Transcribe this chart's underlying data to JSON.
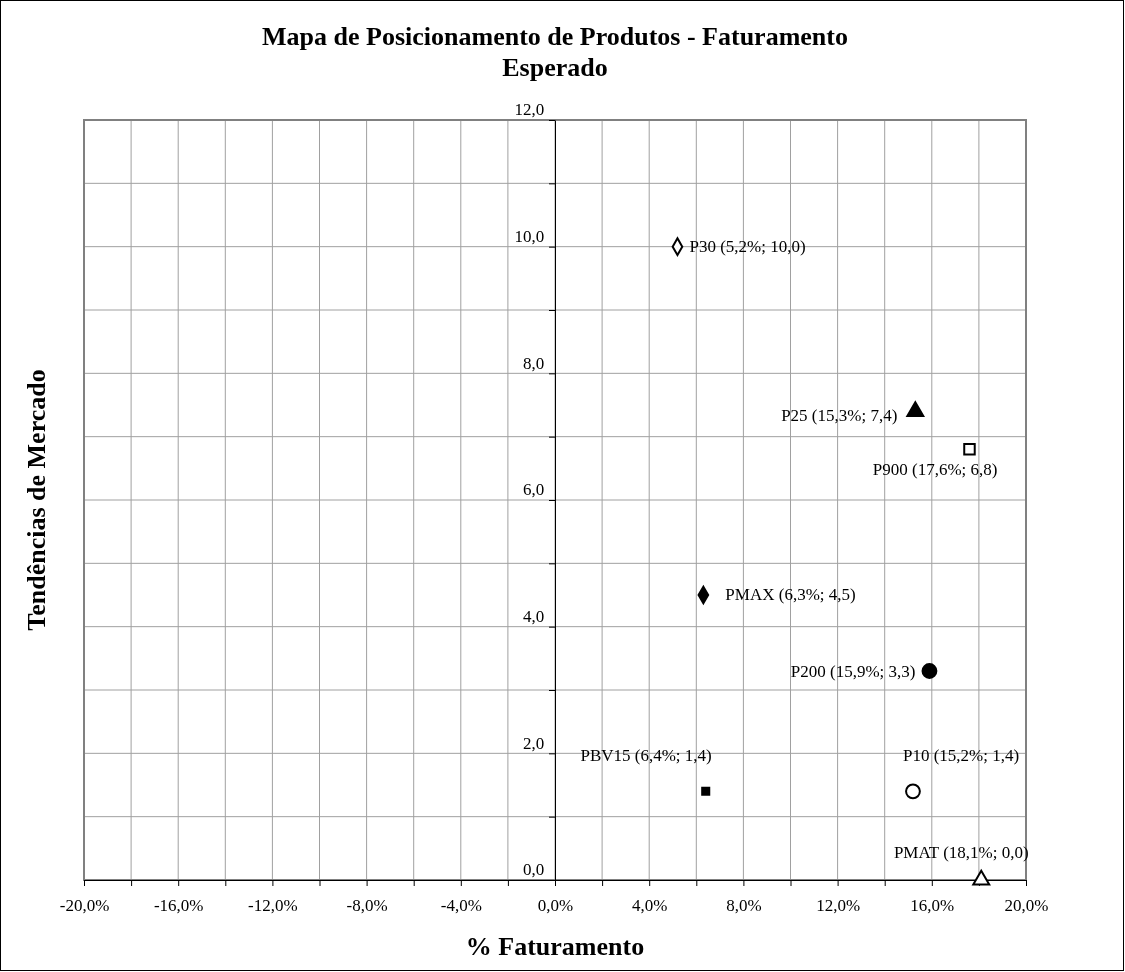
{
  "chart_data": {
    "type": "scatter",
    "title": "Mapa de Posicionamento de Produtos - Faturamento Esperado",
    "xlabel": "% Faturamento",
    "ylabel": "Tendências de Mercado",
    "xlim": [
      -20,
      20
    ],
    "ylim": [
      0,
      12
    ],
    "xticks": [
      {
        "value": -20,
        "label": "-20,0%"
      },
      {
        "value": -18,
        "label": null
      },
      {
        "value": -16,
        "label": "-16,0%"
      },
      {
        "value": -14,
        "label": null
      },
      {
        "value": -12,
        "label": "-12,0%"
      },
      {
        "value": -10,
        "label": null
      },
      {
        "value": -8,
        "label": "-8,0%"
      },
      {
        "value": -6,
        "label": null
      },
      {
        "value": -4,
        "label": "-4,0%"
      },
      {
        "value": -2,
        "label": null
      },
      {
        "value": 0,
        "label": "0,0%"
      },
      {
        "value": 2,
        "label": null
      },
      {
        "value": 4,
        "label": "4,0%"
      },
      {
        "value": 6,
        "label": null
      },
      {
        "value": 8,
        "label": "8,0%"
      },
      {
        "value": 10,
        "label": null
      },
      {
        "value": 12,
        "label": "12,0%"
      },
      {
        "value": 14,
        "label": null
      },
      {
        "value": 16,
        "label": "16,0%"
      },
      {
        "value": 18,
        "label": null
      },
      {
        "value": 20,
        "label": "20,0%"
      }
    ],
    "yticks": [
      {
        "value": 0,
        "label": "0,0"
      },
      {
        "value": 1,
        "label": null
      },
      {
        "value": 2,
        "label": "2,0"
      },
      {
        "value": 3,
        "label": null
      },
      {
        "value": 4,
        "label": "4,0"
      },
      {
        "value": 5,
        "label": null
      },
      {
        "value": 6,
        "label": "6,0"
      },
      {
        "value": 7,
        "label": null
      },
      {
        "value": 8,
        "label": "8,0"
      },
      {
        "value": 9,
        "label": null
      },
      {
        "value": 10,
        "label": "10,0"
      },
      {
        "value": 11,
        "label": null
      },
      {
        "value": 12,
        "label": "12,0"
      }
    ],
    "grid": true,
    "legend": false,
    "series": [
      {
        "name": "P30 (5,2%; 10,0)",
        "color": "#ffffff",
        "marker": "diamond",
        "x": [
          5.2
        ],
        "values": [
          10.0
        ]
      },
      {
        "name": "P25 (15,3%; 7,4)",
        "color": "#000000",
        "marker": "triangle",
        "x": [
          15.3
        ],
        "values": [
          7.4
        ]
      },
      {
        "name": "P900 (17,6%; 6,8)",
        "color": "#ffffff",
        "marker": "square",
        "x": [
          17.6
        ],
        "values": [
          6.8
        ]
      },
      {
        "name": "PMAX (6,3%; 4,5)",
        "color": "#000000",
        "marker": "diamond",
        "x": [
          6.3
        ],
        "values": [
          4.5
        ]
      },
      {
        "name": "P200 (15,9%; 3,3)",
        "color": "#000000",
        "marker": "circle",
        "x": [
          15.9
        ],
        "values": [
          3.3
        ]
      },
      {
        "name": "PBV15 (6,4%; 1,4)",
        "color": "#000000",
        "marker": "square",
        "x": [
          6.4
        ],
        "values": [
          1.4
        ]
      },
      {
        "name": "P10 (15,2%; 1,4)",
        "color": "#ffffff",
        "marker": "circle",
        "x": [
          15.2
        ],
        "values": [
          1.4
        ]
      },
      {
        "name": "PMAT (18,1%; 0,0)",
        "color": "#ffffff",
        "marker": "triangle",
        "x": [
          18.1
        ],
        "values": [
          0.0
        ]
      }
    ]
  }
}
